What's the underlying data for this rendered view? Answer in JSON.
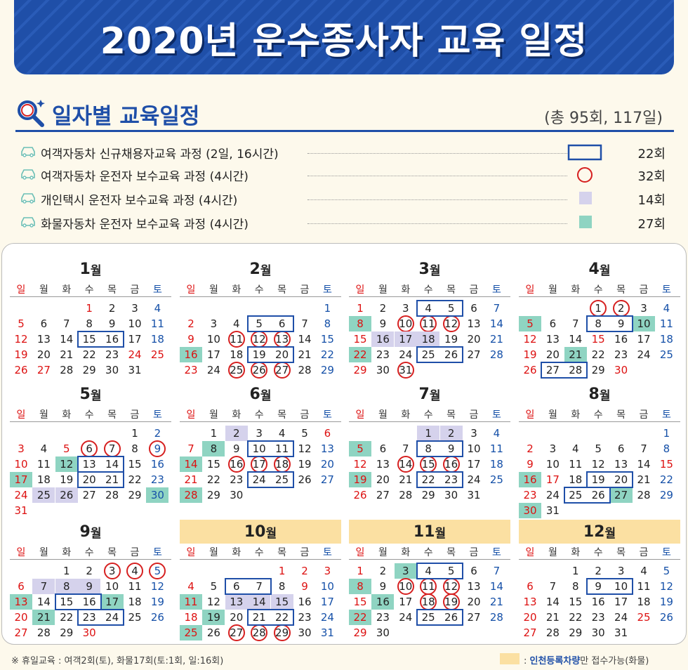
{
  "title": "2020년 운수종사자 교육 일정",
  "section": {
    "title": "일자별 교육일정",
    "total": "(총 95회, 117일)"
  },
  "legend": [
    {
      "label": "여객자동차 신규채용자교육 과정 (2일, 16시간)",
      "mark": "box",
      "count": "22회"
    },
    {
      "label": "여객자동차 운전자 보수교육 과정 (4시간)",
      "mark": "circle",
      "count": "32회"
    },
    {
      "label": "개인택시 운전자 보수교육 과정 (4시간)",
      "mark": "purple",
      "count": "14회"
    },
    {
      "label": "화물자동차 운전자 보수교육 과정 (4시간)",
      "mark": "green",
      "count": "27회"
    }
  ],
  "colors": {
    "box": "#1f4fa8",
    "circle": "#d62020",
    "purple": "#d5d2ec",
    "green": "#8fd4c2",
    "highlight": "#fbe0a2",
    "sunday": "#d11111",
    "saturday": "#1550a8"
  },
  "weekdays": [
    "일",
    "월",
    "화",
    "수",
    "목",
    "금",
    "토"
  ],
  "months": [
    {
      "num": "1",
      "unit": "월",
      "highlight": false,
      "start": 3,
      "days": 31,
      "holidays": [
        1,
        24,
        25,
        27
      ],
      "circles": [],
      "purple": [],
      "green": [],
      "boxes": [
        [
          15,
          16
        ]
      ]
    },
    {
      "num": "2",
      "unit": "월",
      "highlight": false,
      "start": 6,
      "days": 29,
      "holidays": [],
      "circles": [
        11,
        12,
        13,
        25,
        26,
        27
      ],
      "purple": [],
      "green": [
        16
      ],
      "boxes": [
        [
          5,
          6
        ],
        [
          19,
          20
        ]
      ]
    },
    {
      "num": "3",
      "unit": "월",
      "highlight": false,
      "start": 0,
      "days": 31,
      "holidays": [
        1
      ],
      "circles": [
        10,
        11,
        12,
        31
      ],
      "purple": [
        16,
        17,
        18
      ],
      "green": [
        8,
        22
      ],
      "boxes": [
        [
          4,
          5
        ],
        [
          25,
          26
        ]
      ]
    },
    {
      "num": "4",
      "unit": "월",
      "highlight": false,
      "start": 3,
      "days": 30,
      "holidays": [
        15,
        30
      ],
      "circles": [
        1,
        2
      ],
      "purple": [],
      "green": [
        5,
        10,
        21
      ],
      "boxes": [
        [
          8,
          9
        ],
        [
          27,
          28
        ]
      ]
    },
    {
      "num": "5",
      "unit": "월",
      "highlight": false,
      "start": 5,
      "days": 31,
      "holidays": [
        5
      ],
      "circles": [
        6,
        7,
        9
      ],
      "purple": [
        25,
        26
      ],
      "green": [
        12,
        17,
        30
      ],
      "boxes": [
        [
          13,
          14
        ],
        [
          20,
          21
        ]
      ]
    },
    {
      "num": "6",
      "unit": "월",
      "highlight": false,
      "start": 1,
      "days": 30,
      "holidays": [
        6
      ],
      "circles": [
        16,
        17,
        18
      ],
      "purple": [
        2
      ],
      "green": [
        8,
        14,
        28
      ],
      "boxes": [
        [
          10,
          11
        ],
        [
          24,
          25
        ]
      ]
    },
    {
      "num": "7",
      "unit": "월",
      "highlight": false,
      "start": 3,
      "days": 31,
      "holidays": [],
      "circles": [
        14,
        15,
        16
      ],
      "purple": [
        1,
        2
      ],
      "green": [
        5,
        19
      ],
      "boxes": [
        [
          8,
          9
        ],
        [
          22,
          23
        ]
      ]
    },
    {
      "num": "8",
      "unit": "월",
      "highlight": false,
      "start": 6,
      "days": 31,
      "holidays": [
        15,
        17
      ],
      "circles": [],
      "purple": [],
      "green": [
        16,
        27,
        30
      ],
      "boxes": [
        [
          19,
          20
        ],
        [
          25,
          26
        ]
      ]
    },
    {
      "num": "9",
      "unit": "월",
      "highlight": false,
      "start": 2,
      "days": 30,
      "holidays": [
        30
      ],
      "circles": [
        3,
        4,
        5
      ],
      "purple": [
        7,
        8,
        9
      ],
      "green": [
        13,
        17,
        21
      ],
      "boxes": [
        [
          15,
          16
        ],
        [
          23,
          24
        ]
      ]
    },
    {
      "num": "10",
      "unit": "월",
      "highlight": true,
      "start": 4,
      "days": 31,
      "holidays": [
        1,
        2,
        3,
        9
      ],
      "circles": [
        27,
        28,
        29
      ],
      "purple": [
        13,
        14,
        15
      ],
      "green": [
        11,
        19,
        25
      ],
      "boxes": [
        [
          6,
          7
        ],
        [
          21,
          22
        ]
      ]
    },
    {
      "num": "11",
      "unit": "월",
      "highlight": true,
      "start": 0,
      "days": 30,
      "holidays": [],
      "circles": [
        10,
        11,
        12,
        18,
        19
      ],
      "purple": [],
      "green": [
        3,
        8,
        16,
        22
      ],
      "boxes": [
        [
          4,
          5
        ],
        [
          25,
          26
        ]
      ]
    },
    {
      "num": "12",
      "unit": "월",
      "highlight": true,
      "start": 2,
      "days": 31,
      "holidays": [
        25
      ],
      "circles": [],
      "purple": [],
      "green": [],
      "boxes": [
        [
          9,
          10
        ]
      ]
    }
  ],
  "footnote": "※ 휴일교육 : 여객2회(토), 화물17회(토:1회, 일:16회)",
  "footnote_right": {
    "prefix": ": ",
    "emph": "인천등록차량",
    "suffix": "만 접수가능(화물)"
  }
}
